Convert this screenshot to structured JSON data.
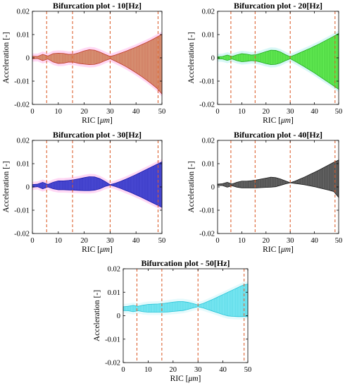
{
  "colors": {
    "vline": "#d9531e",
    "axis": "#000000"
  },
  "chart_data": [
    {
      "type": "area",
      "title": "Bifurcation plot - 10[Hz]",
      "xlabel_main": "RIC [",
      "xlabel_unit": "μm",
      "xlabel_end": "]",
      "ylabel": "Acceleration [-]",
      "xlim": [
        0,
        50
      ],
      "ylim": [
        -0.02,
        0.02
      ],
      "xticks": [
        "0",
        "10",
        "20",
        "30",
        "40",
        "50"
      ],
      "yticks": [
        "-0.02",
        "-0.01",
        "0",
        "0.01",
        "0.02"
      ],
      "vlines": [
        5.5,
        15.5,
        30,
        48.5
      ],
      "color": "#c0392b",
      "fill": "#d99a7a",
      "halo": "#ffc8f0",
      "envelope": {
        "x": [
          0,
          2,
          4,
          6,
          8,
          10,
          12,
          14,
          16,
          18,
          20,
          22,
          24,
          26,
          28,
          30,
          32,
          34,
          36,
          38,
          40,
          42,
          44,
          46,
          48,
          50
        ],
        "upper": [
          0.0007,
          0.0006,
          0.0015,
          0.0008,
          0.0018,
          0.002,
          0.0019,
          0.0015,
          0.0016,
          0.0022,
          0.003,
          0.0035,
          0.0033,
          0.0025,
          0.0015,
          0.0006,
          0.0012,
          0.002,
          0.0028,
          0.0037,
          0.0046,
          0.0056,
          0.0066,
          0.0077,
          0.0089,
          0.0101
        ],
        "lower": [
          -0.0004,
          -0.0003,
          -0.0012,
          -0.0005,
          -0.0018,
          -0.0024,
          -0.0023,
          -0.0018,
          -0.0019,
          -0.0024,
          -0.0027,
          -0.0029,
          -0.0028,
          -0.0022,
          -0.0012,
          -0.0004,
          -0.0014,
          -0.0025,
          -0.0037,
          -0.005,
          -0.0064,
          -0.0079,
          -0.0095,
          -0.0112,
          -0.013,
          -0.0155
        ]
      }
    },
    {
      "type": "area",
      "title": "Bifurcation plot - 20[Hz]",
      "xlabel_main": "RIC [",
      "xlabel_unit": "μm",
      "xlabel_end": "]",
      "ylabel": "Acceleration [-]",
      "xlim": [
        0,
        50
      ],
      "ylim": [
        -0.02,
        0.02
      ],
      "xticks": [
        "0",
        "10",
        "20",
        "30",
        "40",
        "50"
      ],
      "yticks": [
        "-0.02",
        "-0.01",
        "0",
        "0.01",
        "0.02"
      ],
      "vlines": [
        5.5,
        15.5,
        30,
        48.5
      ],
      "color": "#22aa22",
      "fill": "#66ee55",
      "halo": "#c8f4f4",
      "envelope": {
        "x": [
          0,
          2,
          4,
          6,
          8,
          10,
          12,
          14,
          16,
          18,
          20,
          22,
          24,
          26,
          28,
          30,
          32,
          34,
          36,
          38,
          40,
          42,
          44,
          46,
          48,
          50
        ],
        "upper": [
          0.0005,
          0.0006,
          0.0012,
          0.0006,
          0.0013,
          0.0018,
          0.0016,
          0.0012,
          0.0014,
          0.002,
          0.0027,
          0.0033,
          0.0032,
          0.0025,
          0.0014,
          0.0005,
          0.0013,
          0.0022,
          0.0031,
          0.004,
          0.005,
          0.006,
          0.0071,
          0.0082,
          0.0093,
          0.0105
        ],
        "lower": [
          -0.0004,
          -0.0005,
          -0.0011,
          -0.0005,
          -0.0012,
          -0.0017,
          -0.0015,
          -0.0012,
          -0.0014,
          -0.0019,
          -0.0025,
          -0.0029,
          -0.0028,
          -0.0022,
          -0.0012,
          -0.0004,
          -0.0015,
          -0.0027,
          -0.0039,
          -0.0052,
          -0.0065,
          -0.0079,
          -0.0093,
          -0.0107,
          -0.0121,
          -0.0135
        ]
      }
    },
    {
      "type": "area",
      "title": "Bifurcation plot - 30[Hz]",
      "xlabel_main": "RIC [",
      "xlabel_unit": "μm",
      "xlabel_end": "]",
      "ylabel": "Acceleration [-]",
      "xlim": [
        0,
        50
      ],
      "ylim": [
        -0.02,
        0.02
      ],
      "xticks": [
        "0",
        "10",
        "20",
        "30",
        "40",
        "50"
      ],
      "yticks": [
        "-0.02",
        "-0.01",
        "0",
        "0.01",
        "0.02"
      ],
      "vlines": [
        5.5,
        15.5,
        30,
        48.5
      ],
      "color": "#1a1aa8",
      "fill": "#4d4dd6",
      "halo": "#ffc8f0",
      "envelope": {
        "x": [
          0,
          2,
          4,
          6,
          8,
          10,
          12,
          14,
          16,
          18,
          20,
          22,
          24,
          26,
          28,
          30,
          32,
          34,
          36,
          38,
          40,
          42,
          44,
          46,
          48,
          50
        ],
        "upper": [
          0.001,
          0.0012,
          0.002,
          0.0011,
          0.002,
          0.0026,
          0.0026,
          0.0028,
          0.0031,
          0.0035,
          0.004,
          0.0044,
          0.0043,
          0.0036,
          0.0024,
          0.001,
          0.0016,
          0.0024,
          0.0033,
          0.0043,
          0.0053,
          0.0064,
          0.0075,
          0.0086,
          0.0097,
          0.0108
        ],
        "lower": [
          -0.0001,
          0.0001,
          -0.0008,
          0,
          -0.0008,
          -0.0012,
          -0.0012,
          -0.0013,
          -0.0014,
          -0.0015,
          -0.0016,
          -0.0016,
          -0.0014,
          -0.0008,
          0.0002,
          0.0008,
          0.0002,
          -0.0006,
          -0.0015,
          -0.0024,
          -0.0034,
          -0.0044,
          -0.0055,
          -0.0066,
          -0.0077,
          -0.0088
        ]
      }
    },
    {
      "type": "area",
      "title": "Bifurcation plot - 40[Hz]",
      "xlabel_main": "RIC [",
      "xlabel_unit": "μm",
      "xlabel_end": "]",
      "ylabel": "Acceleration [-]",
      "xlim": [
        0,
        50
      ],
      "ylim": [
        -0.02,
        0.02
      ],
      "xticks": [
        "0",
        "10",
        "20",
        "30",
        "40",
        "50"
      ],
      "yticks": [
        "-0.02",
        "-0.01",
        "0",
        "0.01",
        "0.02"
      ],
      "vlines": [
        5.5,
        15.5,
        30,
        48.5
      ],
      "color": "#1a1a1a",
      "fill": "#6a6a6a",
      "halo": "#ffffff",
      "envelope": {
        "x": [
          0,
          2,
          4,
          6,
          8,
          10,
          12,
          14,
          16,
          18,
          20,
          22,
          24,
          26,
          28,
          30,
          32,
          34,
          36,
          38,
          40,
          42,
          44,
          46,
          48,
          50
        ],
        "upper": [
          0.0012,
          0.0014,
          0.002,
          0.0013,
          0.002,
          0.0025,
          0.0025,
          0.0027,
          0.003,
          0.0034,
          0.0038,
          0.0042,
          0.004,
          0.0034,
          0.0026,
          0.0018,
          0.0025,
          0.0034,
          0.0043,
          0.0053,
          0.0063,
          0.0073,
          0.0084,
          0.0095,
          0.0106,
          0.0116
        ],
        "lower": [
          0.0006,
          0.0006,
          -0.0001,
          0.0005,
          -0.0001,
          -0.0004,
          -0.0004,
          -0.0004,
          -0.0004,
          -0.0003,
          -0.0002,
          -0.0001,
          0.0001,
          0.0007,
          0.0013,
          0.0018,
          0.0015,
          0.0012,
          0.0009,
          0.0005,
          0.0001,
          -0.0004,
          -0.0009,
          -0.0014,
          -0.002,
          -0.0045
        ]
      }
    },
    {
      "type": "area",
      "title": "Bifurcation plot - 50[Hz]",
      "xlabel_main": "RIC [",
      "xlabel_unit": "μm",
      "xlabel_end": "]",
      "ylabel": "Acceleration [-]",
      "xlim": [
        0,
        50
      ],
      "ylim": [
        -0.02,
        0.02
      ],
      "xticks": [
        "0",
        "10",
        "20",
        "30",
        "40",
        "50"
      ],
      "yticks": [
        "-0.02",
        "-0.01",
        "0",
        "0.01",
        "0.02"
      ],
      "vlines": [
        5.5,
        15.5,
        30,
        48.5
      ],
      "color": "#27c4d8",
      "fill": "#7fe9f3",
      "halo": "#dcf8fb",
      "envelope": {
        "x": [
          0,
          2,
          4,
          6,
          8,
          10,
          12,
          14,
          16,
          18,
          20,
          22,
          24,
          26,
          28,
          30,
          32,
          34,
          36,
          38,
          40,
          42,
          44,
          46,
          48,
          50
        ],
        "upper": [
          0.0038,
          0.004,
          0.0044,
          0.004,
          0.0045,
          0.0048,
          0.0049,
          0.005,
          0.0052,
          0.0055,
          0.0058,
          0.006,
          0.006,
          0.0057,
          0.0052,
          0.0046,
          0.0052,
          0.0061,
          0.007,
          0.008,
          0.009,
          0.01,
          0.011,
          0.012,
          0.013,
          0.0135
        ],
        "lower": [
          0.0022,
          0.0021,
          0.0017,
          0.0021,
          0.0017,
          0.0015,
          0.0015,
          0.0015,
          0.0015,
          0.0016,
          0.0018,
          0.002,
          0.0022,
          0.0027,
          0.0033,
          0.0038,
          0.0033,
          0.0026,
          0.0019,
          0.0012,
          0.0005,
          -0.0001,
          -0.0003,
          -0.0004,
          -0.0004,
          -0.0004
        ]
      }
    }
  ]
}
